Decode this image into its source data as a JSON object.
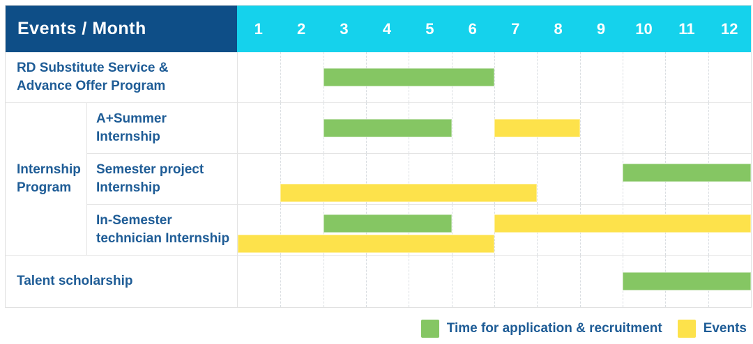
{
  "header": {
    "title": "Events / Month",
    "months": [
      "1",
      "2",
      "3",
      "4",
      "5",
      "6",
      "7",
      "8",
      "9",
      "10",
      "11",
      "12"
    ]
  },
  "colors": {
    "header_bg": "#0e4e87",
    "month_strip_bg": "#15d2ec",
    "label_text": "#1e5c96",
    "green": "#85c663",
    "yellow": "#fde24b"
  },
  "legend": {
    "items": [
      {
        "key": "green",
        "label": "Time for application & recruitment"
      },
      {
        "key": "yellow",
        "label": "Events"
      }
    ]
  },
  "chart_data": {
    "type": "gantt",
    "title": "Events / Month",
    "x_axis": {
      "unit": "month",
      "ticks": [
        1,
        2,
        3,
        4,
        5,
        6,
        7,
        8,
        9,
        10,
        11,
        12
      ]
    },
    "series_meaning": {
      "green": "Time for application & recruitment",
      "yellow": "Events"
    },
    "group": {
      "id": "internship-program",
      "label_lines": [
        "Internship",
        "Program"
      ],
      "covers_rows": [
        2,
        3,
        4
      ]
    },
    "rows": [
      {
        "id": "rd-substitute",
        "type": "full",
        "label_lines": [
          "RD Substitute Service &",
          "Advance Offer Program"
        ],
        "bars": [
          {
            "color": "green",
            "start": 3,
            "end": 6,
            "lane": "mid"
          }
        ]
      },
      {
        "id": "a-plus-summer-internship",
        "type": "sub",
        "label_lines": [
          "A+Summer",
          "Internship"
        ],
        "bars": [
          {
            "color": "green",
            "start": 3,
            "end": 5,
            "lane": "mid"
          },
          {
            "color": "yellow",
            "start": 7,
            "end": 8,
            "lane": "mid"
          }
        ]
      },
      {
        "id": "semester-project-internship",
        "type": "sub",
        "label_lines": [
          "Semester project",
          "Internship"
        ],
        "bars": [
          {
            "color": "green",
            "start": 10,
            "end": 12,
            "lane": "top"
          },
          {
            "color": "yellow",
            "start": 2,
            "end": 7,
            "lane": "bottom"
          }
        ]
      },
      {
        "id": "in-semester-technician-internship",
        "type": "sub",
        "label_lines": [
          "In-Semester",
          "technician Internship"
        ],
        "bars": [
          {
            "color": "green",
            "start": 3,
            "end": 5,
            "lane": "top"
          },
          {
            "color": "yellow",
            "start": 7,
            "end": 12,
            "lane": "top"
          },
          {
            "color": "yellow",
            "start": 1,
            "end": 6,
            "lane": "bottom"
          }
        ]
      },
      {
        "id": "talent-scholarship",
        "type": "full",
        "label_lines": [
          "Talent scholarship"
        ],
        "bars": [
          {
            "color": "green",
            "start": 10,
            "end": 12,
            "lane": "mid"
          }
        ]
      }
    ]
  }
}
